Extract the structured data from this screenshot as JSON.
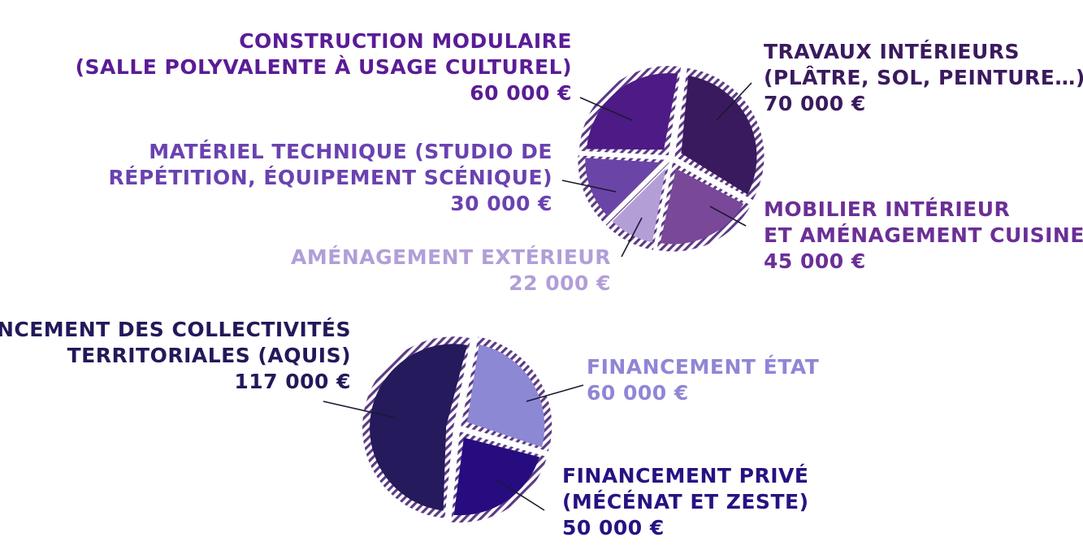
{
  "chart_data": [
    {
      "type": "pie",
      "title": "",
      "slices": [
        {
          "lines": [
            "Travaux intérieurs",
            "(plâtre, sol, peinture…)",
            "70 000 €"
          ],
          "value": 70000,
          "color": "#3a1a5e"
        },
        {
          "lines": [
            "Mobilier intérieur",
            "et aménagement cuisine",
            "45 000 €"
          ],
          "value": 45000,
          "color": "#7a4898",
          "text_color": "#6b2f96"
        },
        {
          "lines": [
            "Aménagement extérieur",
            "22 000 €"
          ],
          "value": 22000,
          "color": "#b49ed6",
          "text_color": "#b29ed8"
        },
        {
          "lines": [
            "Matériel technique (studio de",
            "répétition, équipement scénique)",
            "30 000 €"
          ],
          "value": 30000,
          "color": "#6b44a8",
          "text_color": "#6a42b0"
        },
        {
          "lines": [
            "Construction modulaire",
            "(salle polyvalente à usage culturel)",
            "60 000 €"
          ],
          "value": 60000,
          "color": "#4e1a86",
          "text_color": "#5a1c96"
        }
      ]
    },
    {
      "type": "pie",
      "title": "",
      "slices": [
        {
          "lines": [
            "Financement État",
            "60 000 €"
          ],
          "value": 60000,
          "color": "#8d88d4",
          "text_color": "#8f86d6"
        },
        {
          "lines": [
            "Financement privé",
            "(Mécénat et Zeste)",
            "50 000 €"
          ],
          "value": 50000,
          "color": "#270c80",
          "text_color": "#281282"
        },
        {
          "lines": [
            "Financement des collectivités",
            "territoriales (AQUIS)",
            "117 000 €"
          ],
          "value": 117000,
          "color": "#241a5c",
          "text_color": "#22195a"
        }
      ]
    }
  ]
}
